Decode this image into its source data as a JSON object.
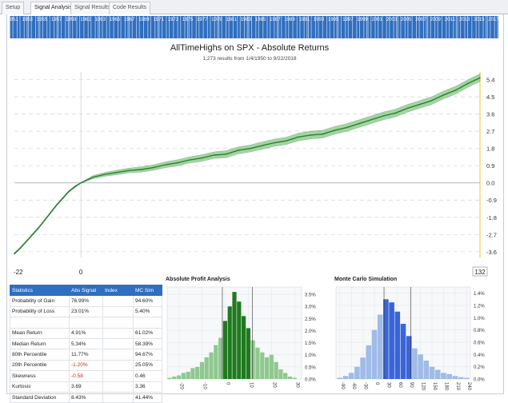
{
  "tabs": [
    {
      "label": "Setup",
      "active": false
    },
    {
      "label": "Signal Analysis",
      "active": true
    },
    {
      "label": "Signal Results",
      "active": false
    },
    {
      "label": "Code Results",
      "active": false
    }
  ],
  "timeline": {
    "years": [
      "1951",
      "1953",
      "1955",
      "1957",
      "1959",
      "1961",
      "1963",
      "1965",
      "1967",
      "1969",
      "1971",
      "1973",
      "1975",
      "1977",
      "1979",
      "1981",
      "1983",
      "1985",
      "1987",
      "1989",
      "1991",
      "1993",
      "1995",
      "1997",
      "1999",
      "2001",
      "2003",
      "2005",
      "2007",
      "2009",
      "2011",
      "2013",
      "2015",
      "2017"
    ],
    "bar_color": "#2f6ec0"
  },
  "main_chart": {
    "title": "AllTimeHighs on SPX - Absolute Returns",
    "subtitle": "1,273 results from 1/4/1950 to 9/22/2018",
    "x_labels": [
      "-22",
      "0",
      "132"
    ],
    "x_range": [
      -22,
      132
    ],
    "y_ticks": [
      "5.4",
      "4.5",
      "3.6",
      "2.7",
      "1.8",
      "0.9",
      "0.0",
      "-0.9",
      "-1.8",
      "-2.7",
      "-3.6"
    ],
    "y_range": [
      -3.9,
      5.8
    ],
    "line_color": "#2e7d32",
    "band_color": "#7cc47c",
    "cursor_color": "#f0b400",
    "chart_data": {
      "type": "line",
      "x": [
        -22,
        -20,
        -18,
        -16,
        -14,
        -12,
        -10,
        -8,
        -6,
        -4,
        -2,
        0,
        4,
        8,
        12,
        16,
        20,
        24,
        28,
        32,
        36,
        40,
        44,
        48,
        52,
        56,
        60,
        64,
        68,
        72,
        76,
        80,
        84,
        88,
        92,
        96,
        100,
        104,
        108,
        112,
        116,
        120,
        124,
        128,
        132
      ],
      "series": [
        {
          "values": [
            -3.7,
            -3.4,
            -3.05,
            -2.7,
            -2.35,
            -1.95,
            -1.55,
            -1.15,
            -0.8,
            -0.45,
            -0.2,
            0.0,
            0.3,
            0.45,
            0.55,
            0.65,
            0.7,
            0.8,
            0.95,
            1.05,
            1.2,
            1.3,
            1.45,
            1.5,
            1.7,
            1.8,
            1.95,
            2.1,
            2.2,
            2.4,
            2.5,
            2.55,
            2.75,
            2.9,
            3.1,
            3.3,
            3.5,
            3.65,
            3.9,
            4.1,
            4.3,
            4.6,
            4.85,
            5.2,
            5.5
          ]
        }
      ],
      "band_halfwidth": [
        0.05,
        0.05,
        0.05,
        0.05,
        0.05,
        0.05,
        0.05,
        0.05,
        0.05,
        0.05,
        0.05,
        0.02,
        0.08,
        0.1,
        0.12,
        0.12,
        0.14,
        0.14,
        0.15,
        0.16,
        0.16,
        0.17,
        0.17,
        0.18,
        0.18,
        0.18,
        0.19,
        0.19,
        0.19,
        0.2,
        0.2,
        0.2,
        0.2,
        0.2,
        0.2,
        0.2,
        0.2,
        0.2,
        0.2,
        0.2,
        0.2,
        0.2,
        0.2,
        0.2,
        0.2
      ]
    }
  },
  "stats": {
    "headers": [
      "Statistics",
      "Abs Signal",
      "Index",
      "MC Sim"
    ],
    "rows": [
      [
        "Probability of Gain",
        "76.99%",
        "",
        "94.60%"
      ],
      [
        "Probability of Loss",
        "23.01%",
        "",
        "5.40%"
      ],
      [
        "",
        "",
        "",
        ""
      ],
      [
        "Mean Return",
        "4.91%",
        "",
        "61.02%"
      ],
      [
        "Median Return",
        "5.34%",
        "",
        "58.39%"
      ],
      [
        "80th Percentile",
        "11.77%",
        "",
        "94.67%"
      ],
      [
        "20th Percentile",
        "-1.20%",
        "",
        "25.05%"
      ],
      [
        "Skewness",
        "-0.58",
        "",
        "0.46"
      ],
      [
        "Kurtosis",
        "3.69",
        "",
        "3.36"
      ],
      [
        "Standard Deviation",
        "8.43%",
        "",
        "41.44%"
      ]
    ]
  },
  "profit_analysis": {
    "title": "Absolute Profit Analysis",
    "x_ticks": [
      "-20",
      "-10",
      "0",
      "10",
      "20",
      "30"
    ],
    "y_ticks": [
      "3.5%",
      "3.0%",
      "2.5%",
      "2.0%",
      "1.5%",
      "1.0%",
      "0.5%",
      "0.0%"
    ],
    "colors": {
      "outer": "#8fc88f",
      "inner": "#1f7a1f"
    },
    "chart_data": {
      "type": "area",
      "x_range": [
        -25,
        33
      ],
      "y_range": [
        0,
        3.8
      ],
      "inner_range": [
        -1.2,
        11.77
      ],
      "x": [
        -24,
        -22,
        -20,
        -18,
        -16,
        -14,
        -12,
        -10,
        -8,
        -6,
        -4,
        -2,
        0,
        2,
        4,
        6,
        8,
        10,
        12,
        14,
        16,
        18,
        20,
        22,
        24,
        26,
        28,
        30
      ],
      "values": [
        0.05,
        0.1,
        0.15,
        0.25,
        0.3,
        0.45,
        0.5,
        0.7,
        0.9,
        1.1,
        1.4,
        1.7,
        2.4,
        3.0,
        3.6,
        3.2,
        2.6,
        2.1,
        1.6,
        1.3,
        1.1,
        0.9,
        1.0,
        0.7,
        0.4,
        0.25,
        0.1,
        0.05
      ]
    }
  },
  "monte_carlo": {
    "title": "Monte Carlo Simulation",
    "x_ticks": [
      "-90",
      "-60",
      "-30",
      "0",
      "30",
      "60",
      "90",
      "120",
      "150",
      "180",
      "210",
      "240"
    ],
    "y_ticks": [
      "1.4%",
      "1.2%",
      "1.0%",
      "0.8%",
      "0.6%",
      "0.4%",
      "0.2%",
      "0.0%"
    ],
    "colors": {
      "outer": "#9fbbe8",
      "inner": "#3a64d8"
    },
    "chart_data": {
      "type": "area",
      "x_range": [
        -100,
        250
      ],
      "y_range": [
        0,
        1.5
      ],
      "inner_range": [
        25.05,
        94.67
      ],
      "x": [
        -90,
        -75,
        -60,
        -45,
        -30,
        -15,
        0,
        15,
        30,
        45,
        60,
        75,
        90,
        105,
        120,
        135,
        150,
        165,
        180,
        195,
        210,
        225,
        240
      ],
      "values": [
        0.02,
        0.05,
        0.1,
        0.2,
        0.35,
        0.55,
        0.8,
        1.05,
        1.3,
        1.25,
        1.1,
        0.9,
        0.7,
        0.5,
        0.4,
        0.3,
        0.2,
        0.15,
        0.1,
        0.08,
        0.05,
        0.03,
        0.02
      ]
    }
  }
}
